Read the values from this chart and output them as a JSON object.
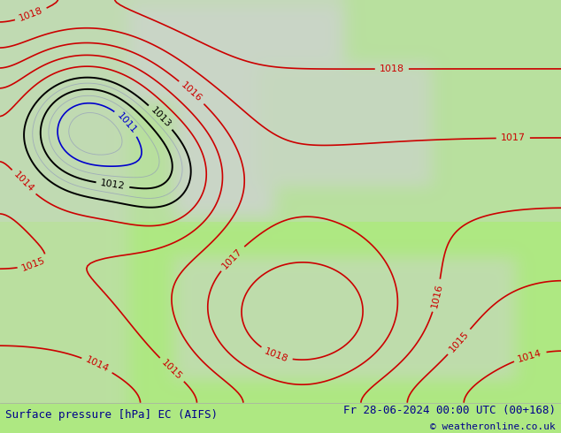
{
  "title_left": "Surface pressure [hPa] EC (AIFS)",
  "title_right": "Fr 28-06-2024 00:00 UTC (00+168)",
  "copyright": "© weatheronline.co.uk",
  "bg_color": "#aee882",
  "land_color": "#aee882",
  "sea_color": "#d0d0d0",
  "footer_bg": "#ffffff",
  "footer_text_color": "#00008b",
  "blue_contour_color": "#0000cc",
  "black_contour_color": "#000000",
  "red_contour_color": "#cc0000",
  "purple_contour_color": "#8080c0",
  "label_fontsize": 8,
  "footer_fontsize": 9
}
